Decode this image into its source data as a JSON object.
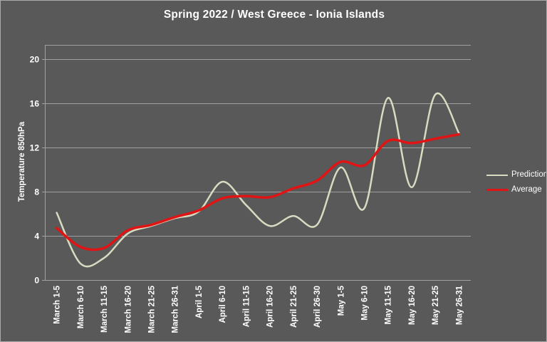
{
  "title": "Spring 2022 / West Greece - Ionia Islands",
  "y_axis": {
    "title": "Temperature 850hPa"
  },
  "legend": {
    "items": [
      {
        "label": "Prediction",
        "color": "#d7dcc1",
        "thickness": 2
      },
      {
        "label": "Average",
        "color": "#e01414",
        "thickness": 3
      }
    ]
  },
  "colors": {
    "background": "#595959",
    "text": "#ffffff",
    "gridline": "#a0a0a0",
    "axis": "#a0a0a0",
    "prediction": "#d7dcc1",
    "average": "#e01414"
  },
  "chart_data": {
    "type": "line",
    "title": "Spring 2022 / West Greece - Ionia Islands",
    "xlabel": "",
    "ylabel": "Temperature 850hPa",
    "ylim": [
      0,
      21.3
    ],
    "yticks": [
      0,
      4,
      8,
      12,
      16,
      20
    ],
    "grid": true,
    "legend_position": "right",
    "smooth": true,
    "categories": [
      "March 1-5",
      "March 6-10",
      "March 11-15",
      "March 16-20",
      "March 21-25",
      "March 26-31",
      "April 1-5",
      "April 6-10",
      "April 11-15",
      "April 16-20",
      "April 21-25",
      "April 26-30",
      "May 1-5",
      "May 6-10",
      "May 11-15",
      "May 16-20",
      "May 21-25",
      "May 26-31"
    ],
    "series": [
      {
        "name": "Prediction",
        "color": "#d7dcc1",
        "width": 2.5,
        "values": [
          6.1,
          1.5,
          2.0,
          4.2,
          4.9,
          5.6,
          6.2,
          8.9,
          6.8,
          4.9,
          5.8,
          5.0,
          10.2,
          6.5,
          16.5,
          8.4,
          16.8,
          13.3
        ]
      },
      {
        "name": "Average",
        "color": "#e01414",
        "width": 3.5,
        "values": [
          4.7,
          3.0,
          2.9,
          4.5,
          5.0,
          5.7,
          6.3,
          7.4,
          7.6,
          7.5,
          8.3,
          9.0,
          10.7,
          10.4,
          12.6,
          12.4,
          12.8,
          13.2
        ]
      }
    ]
  }
}
